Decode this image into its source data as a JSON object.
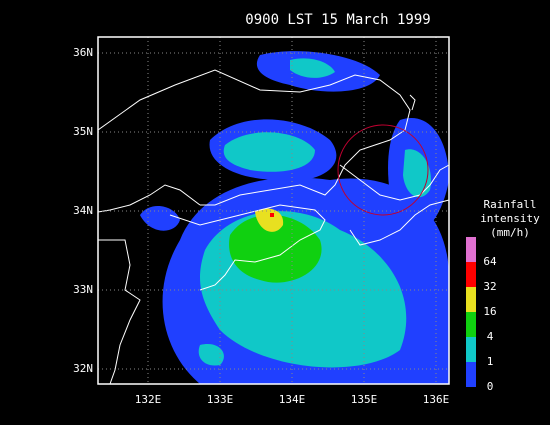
{
  "title": "0900 LST 15 March 1999",
  "lat_labels": [
    "36N",
    "35N",
    "34N",
    "33N",
    "32N"
  ],
  "lon_labels": [
    "132E",
    "133E",
    "134E",
    "135E",
    "136E"
  ],
  "legend": {
    "title": [
      "Rainfall",
      "intensity",
      "(mm/h)"
    ],
    "levels": [
      {
        "label": "64",
        "color": "#e070d0"
      },
      {
        "label": "32",
        "color": "#ff0000"
      },
      {
        "label": "16",
        "color": "#e8e020"
      },
      {
        "label": "4",
        "color": "#10d010"
      },
      {
        "label": "1",
        "color": "#10c8c8"
      },
      {
        "label": "0",
        "color": "#2040ff"
      }
    ]
  }
}
